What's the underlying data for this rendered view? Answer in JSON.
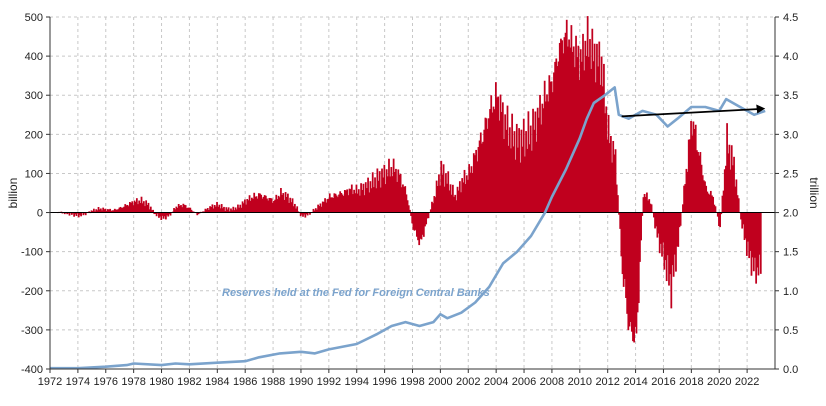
{
  "chart_data": {
    "type": "bar+line",
    "title": "",
    "xlabel": "",
    "ylabel_left": "billion",
    "ylabel_right": "trillion",
    "x_range": [
      1972,
      2024
    ],
    "x_ticks": [
      "1972",
      "1974",
      "1976",
      "1978",
      "1980",
      "1982",
      "1984",
      "1986",
      "1988",
      "1990",
      "1992",
      "1994",
      "1996",
      "1998",
      "2000",
      "2002",
      "2004",
      "2006",
      "2008",
      "2010",
      "2012",
      "2014",
      "2016",
      "2018",
      "2020",
      "2022"
    ],
    "left_axis": {
      "range": [
        -400,
        500
      ],
      "ticks": [
        "500",
        "400",
        "300",
        "200",
        "100",
        "0",
        "-100",
        "-200",
        "-300",
        "-400"
      ]
    },
    "right_axis": {
      "range": [
        0.0,
        4.5
      ],
      "ticks": [
        "4.5",
        "4.0",
        "3.5",
        "3.0",
        "2.5",
        "2.0",
        "1.5",
        "1.0",
        "0.5",
        "0.0"
      ]
    },
    "grid": true,
    "colors": {
      "bars": "#c0001e",
      "line": "#7ba3cc",
      "trend": "#000000",
      "grid": "#c8c8c8"
    },
    "annotation": "Reserves held at the Fed for Foreign Central Banks",
    "series": [
      {
        "name": "Reserves held at the Fed for Foreign Central Banks",
        "kind": "line",
        "axis": "right",
        "points": [
          [
            1972.0,
            0.01
          ],
          [
            1974.0,
            0.01
          ],
          [
            1976.0,
            0.03
          ],
          [
            1977.5,
            0.05
          ],
          [
            1978.0,
            0.07
          ],
          [
            1980.0,
            0.05
          ],
          [
            1981.0,
            0.07
          ],
          [
            1982.0,
            0.06
          ],
          [
            1984.0,
            0.08
          ],
          [
            1986.0,
            0.1
          ],
          [
            1987.0,
            0.15
          ],
          [
            1988.5,
            0.2
          ],
          [
            1990.0,
            0.22
          ],
          [
            1991.0,
            0.2
          ],
          [
            1992.0,
            0.25
          ],
          [
            1994.0,
            0.32
          ],
          [
            1995.5,
            0.45
          ],
          [
            1996.5,
            0.55
          ],
          [
            1997.5,
            0.6
          ],
          [
            1998.5,
            0.55
          ],
          [
            1999.5,
            0.6
          ],
          [
            2000.0,
            0.7
          ],
          [
            2000.5,
            0.65
          ],
          [
            2001.5,
            0.72
          ],
          [
            2002.5,
            0.85
          ],
          [
            2003.5,
            1.05
          ],
          [
            2004.5,
            1.35
          ],
          [
            2005.5,
            1.5
          ],
          [
            2006.5,
            1.7
          ],
          [
            2007.5,
            2.0
          ],
          [
            2008.0,
            2.2
          ],
          [
            2009.0,
            2.55
          ],
          [
            2010.0,
            2.95
          ],
          [
            2010.5,
            3.2
          ],
          [
            2011.0,
            3.4
          ],
          [
            2011.8,
            3.5
          ],
          [
            2012.5,
            3.6
          ],
          [
            2012.8,
            3.25
          ],
          [
            2013.5,
            3.2
          ],
          [
            2014.5,
            3.3
          ],
          [
            2015.5,
            3.25
          ],
          [
            2016.3,
            3.1
          ],
          [
            2017.0,
            3.2
          ],
          [
            2018.0,
            3.35
          ],
          [
            2019.0,
            3.35
          ],
          [
            2020.0,
            3.3
          ],
          [
            2020.5,
            3.45
          ],
          [
            2021.5,
            3.35
          ],
          [
            2022.5,
            3.25
          ],
          [
            2023.3,
            3.3
          ]
        ]
      },
      {
        "name": "",
        "kind": "trend-arrow",
        "axis": "right",
        "points": [
          [
            2013.0,
            3.23
          ],
          [
            2023.3,
            3.33
          ]
        ]
      },
      {
        "name": "",
        "kind": "bar",
        "axis": "left",
        "points": [
          [
            1972.5,
            2
          ],
          [
            1973.0,
            -2
          ],
          [
            1973.5,
            -5
          ],
          [
            1974.0,
            -8
          ],
          [
            1974.5,
            -3
          ],
          [
            1975.0,
            5
          ],
          [
            1975.5,
            10
          ],
          [
            1976.0,
            8
          ],
          [
            1976.5,
            6
          ],
          [
            1977.0,
            12
          ],
          [
            1977.5,
            20
          ],
          [
            1978.0,
            28
          ],
          [
            1978.5,
            30
          ],
          [
            1979.0,
            20
          ],
          [
            1979.5,
            -5
          ],
          [
            1980.0,
            -15
          ],
          [
            1980.5,
            -8
          ],
          [
            1981.0,
            15
          ],
          [
            1981.5,
            20
          ],
          [
            1982.0,
            10
          ],
          [
            1982.5,
            -5
          ],
          [
            1983.0,
            5
          ],
          [
            1983.5,
            15
          ],
          [
            1984.0,
            20
          ],
          [
            1984.5,
            10
          ],
          [
            1985.0,
            8
          ],
          [
            1985.5,
            15
          ],
          [
            1986.0,
            30
          ],
          [
            1986.5,
            40
          ],
          [
            1987.0,
            45
          ],
          [
            1987.5,
            38
          ],
          [
            1988.0,
            30
          ],
          [
            1988.5,
            50
          ],
          [
            1989.0,
            40
          ],
          [
            1989.5,
            20
          ],
          [
            1990.0,
            -10
          ],
          [
            1990.5,
            -5
          ],
          [
            1991.0,
            10
          ],
          [
            1991.5,
            25
          ],
          [
            1992.0,
            40
          ],
          [
            1992.5,
            45
          ],
          [
            1993.0,
            50
          ],
          [
            1993.5,
            60
          ],
          [
            1994.0,
            55
          ],
          [
            1994.5,
            65
          ],
          [
            1995.0,
            75
          ],
          [
            1995.5,
            90
          ],
          [
            1996.0,
            100
          ],
          [
            1996.5,
            115
          ],
          [
            1997.0,
            95
          ],
          [
            1997.5,
            50
          ],
          [
            1998.0,
            -40
          ],
          [
            1998.5,
            -80
          ],
          [
            1999.0,
            -20
          ],
          [
            1999.5,
            40
          ],
          [
            2000.0,
            110
          ],
          [
            2000.5,
            80
          ],
          [
            2001.0,
            40
          ],
          [
            2001.5,
            80
          ],
          [
            2002.0,
            100
          ],
          [
            2002.5,
            150
          ],
          [
            2003.0,
            200
          ],
          [
            2003.5,
            260
          ],
          [
            2004.0,
            300
          ],
          [
            2004.5,
            240
          ],
          [
            2005.0,
            200
          ],
          [
            2005.5,
            180
          ],
          [
            2006.0,
            190
          ],
          [
            2006.5,
            210
          ],
          [
            2007.0,
            250
          ],
          [
            2007.5,
            300
          ],
          [
            2008.0,
            340
          ],
          [
            2008.5,
            420
          ],
          [
            2009.0,
            460
          ],
          [
            2009.5,
            420
          ],
          [
            2010.0,
            390
          ],
          [
            2010.5,
            440
          ],
          [
            2011.0,
            400
          ],
          [
            2011.5,
            380
          ],
          [
            2012.0,
            200
          ],
          [
            2012.5,
            140
          ],
          [
            2013.0,
            -150
          ],
          [
            2013.5,
            -300
          ],
          [
            2014.0,
            -320
          ],
          [
            2014.5,
            50
          ],
          [
            2015.0,
            30
          ],
          [
            2015.5,
            -60
          ],
          [
            2016.0,
            -120
          ],
          [
            2016.5,
            -190
          ],
          [
            2017.0,
            -80
          ],
          [
            2017.5,
            80
          ],
          [
            2018.0,
            240
          ],
          [
            2018.5,
            150
          ],
          [
            2019.0,
            60
          ],
          [
            2019.5,
            40
          ],
          [
            2020.0,
            -40
          ],
          [
            2020.5,
            180
          ],
          [
            2021.0,
            120
          ],
          [
            2021.5,
            -20
          ],
          [
            2022.0,
            -100
          ],
          [
            2022.5,
            -150
          ],
          [
            2023.0,
            -140
          ]
        ]
      }
    ]
  }
}
